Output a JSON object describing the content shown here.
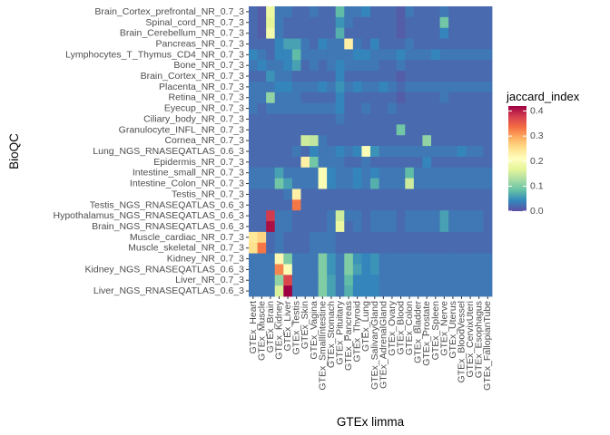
{
  "chart_data": {
    "type": "heatmap",
    "title": "",
    "xlabel": "GTEx limma",
    "ylabel": "BioQC",
    "colorbar": {
      "title": "jaccard_index",
      "range": [
        0,
        0.42
      ],
      "ticks": [
        0.0,
        0.1,
        0.2,
        0.3,
        0.4
      ],
      "tick_labels": [
        "0.0",
        "0.1",
        "0.2",
        "0.3",
        "0.4"
      ],
      "colormap": "Spectral (reversed)",
      "stops": [
        "#5E4FA2",
        "#3288BD",
        "#66C2A5",
        "#ABDDA4",
        "#E6F598",
        "#FFFFBF",
        "#FEE08B",
        "#FDAE61",
        "#F46D43",
        "#D53E4F",
        "#9E0142"
      ]
    },
    "grid": false,
    "legend_position": "right",
    "x_categories": [
      "GTEx_Heart",
      "GTEx_Muscle",
      "GTEx_Brain",
      "GTEx_Kidney",
      "GTEx_Liver",
      "GTEx_Testis",
      "GTEx_Skin",
      "GTEx_Vagina",
      "GTEx_SmallIntestine",
      "GTEx_Stomach",
      "GTEx_Pituitary",
      "GTEx_Pancreas",
      "GTEx_Thyroid",
      "GTEx_Lung",
      "GTEx_SalivaryGland",
      "GTEx_AdrenalGland",
      "GTEx_Ovary",
      "GTEx_Blood",
      "GTEx_Colon",
      "GTEx_Bladder",
      "GTEx_Prostate",
      "GTEx_Spleen",
      "GTEx_Nerve",
      "GTEx_Uterus",
      "GTEx_BloodVessel",
      "GTEx_CervixUteri",
      "GTEx_Esophagus",
      "GTEx_FallopianTube"
    ],
    "y_categories": [
      "Brain_Cortex_prefrontal_NR_0.7_3",
      "Spinal_cord_NR_0.7_3",
      "Brain_Cerebellum_NR_0.7_3",
      "Pancreas_NR_0.7_3",
      "Lymphocytes_T_Thymus_CD4_NR_0.7_3",
      "Bone_NR_0.7_3",
      "Brain_Cortex_NR_0.7_3",
      "Placenta_NR_0.7_3",
      "Retina_NR_0.7_3",
      "Eyecup_NR_0.7_3",
      "Ciliary_body_NR_0.7_3",
      "Granulocyte_INFL_NR_0.7_3",
      "Cornea_NR_0.7_3",
      "Lung_NGS_RNASEQATLAS_0.6_3",
      "Epidermis_NR_0.7_3",
      "Intestine_small_NR_0.7_3",
      "Intestine_Colon_NR_0.7_3",
      "Testis_NR_0.7_3",
      "Testis_NGS_RNASEQATLAS_0.6_3",
      "Hypothalamus_NGS_RNASEQATLAS_0.6_3",
      "Brain_NGS_RNASEQATLAS_0.6_3",
      "Muscle_cardiac_NR_0.7_3",
      "Muscle_skeletal_NR_0.7_3",
      "Kidney_NR_0.7_3",
      "Kidney_NGS_RNASEQATLAS_0.6_3",
      "Liver_NR_0.7_3",
      "Liver_NGS_RNASEQATLAS_0.6_3"
    ],
    "values": [
      [
        0.02,
        0.01,
        0.18,
        0.03,
        0.03,
        0.02,
        0.02,
        0.03,
        0.02,
        0.02,
        0.08,
        0.03,
        0.03,
        0.04,
        0.02,
        0.02,
        0.02,
        0.01,
        0.03,
        0.02,
        0.02,
        0.02,
        0.03,
        0.02,
        0.02,
        0.02,
        0.02,
        0.02
      ],
      [
        0.02,
        0.01,
        0.17,
        0.03,
        0.02,
        0.02,
        0.02,
        0.02,
        0.02,
        0.02,
        0.05,
        0.03,
        0.02,
        0.02,
        0.02,
        0.02,
        0.02,
        0.01,
        0.02,
        0.02,
        0.02,
        0.02,
        0.09,
        0.02,
        0.02,
        0.02,
        0.02,
        0.02
      ],
      [
        0.02,
        0.01,
        0.19,
        0.03,
        0.02,
        0.02,
        0.02,
        0.02,
        0.02,
        0.02,
        0.07,
        0.02,
        0.02,
        0.02,
        0.02,
        0.02,
        0.02,
        0.01,
        0.02,
        0.02,
        0.02,
        0.02,
        0.04,
        0.02,
        0.02,
        0.02,
        0.02,
        0.02
      ],
      [
        0.02,
        0.02,
        0.02,
        0.04,
        0.06,
        0.06,
        0.03,
        0.02,
        0.04,
        0.03,
        0.03,
        0.23,
        0.03,
        0.02,
        0.04,
        0.02,
        0.02,
        0.02,
        0.03,
        0.02,
        0.02,
        0.02,
        0.02,
        0.02,
        0.02,
        0.02,
        0.02,
        0.02
      ],
      [
        0.04,
        0.03,
        0.02,
        0.04,
        0.04,
        0.08,
        0.03,
        0.03,
        0.03,
        0.03,
        0.03,
        0.03,
        0.04,
        0.04,
        0.03,
        0.03,
        0.03,
        0.04,
        0.03,
        0.03,
        0.03,
        0.04,
        0.03,
        0.03,
        0.03,
        0.03,
        0.03,
        0.03
      ],
      [
        0.03,
        0.04,
        0.03,
        0.03,
        0.04,
        0.06,
        0.02,
        0.03,
        0.02,
        0.03,
        0.04,
        0.03,
        0.03,
        0.03,
        0.03,
        0.02,
        0.02,
        0.03,
        0.02,
        0.02,
        0.02,
        0.02,
        0.02,
        0.02,
        0.02,
        0.02,
        0.02,
        0.02
      ],
      [
        0.02,
        0.02,
        0.05,
        0.03,
        0.03,
        0.02,
        0.02,
        0.02,
        0.02,
        0.02,
        0.04,
        0.02,
        0.02,
        0.02,
        0.02,
        0.02,
        0.02,
        0.01,
        0.02,
        0.02,
        0.02,
        0.02,
        0.02,
        0.02,
        0.02,
        0.02,
        0.02,
        0.02
      ],
      [
        0.03,
        0.03,
        0.03,
        0.04,
        0.04,
        0.03,
        0.03,
        0.03,
        0.04,
        0.03,
        0.05,
        0.03,
        0.04,
        0.03,
        0.03,
        0.04,
        0.03,
        0.02,
        0.03,
        0.03,
        0.03,
        0.03,
        0.03,
        0.03,
        0.03,
        0.03,
        0.03,
        0.03
      ],
      [
        0.03,
        0.03,
        0.11,
        0.03,
        0.03,
        0.03,
        0.02,
        0.02,
        0.02,
        0.02,
        0.04,
        0.02,
        0.02,
        0.02,
        0.02,
        0.02,
        0.02,
        0.01,
        0.02,
        0.02,
        0.02,
        0.02,
        0.03,
        0.02,
        0.02,
        0.02,
        0.02,
        0.02
      ],
      [
        0.03,
        0.02,
        0.03,
        0.03,
        0.03,
        0.03,
        0.03,
        0.03,
        0.03,
        0.03,
        0.04,
        0.02,
        0.02,
        0.03,
        0.02,
        0.02,
        0.03,
        0.02,
        0.02,
        0.02,
        0.02,
        0.02,
        0.02,
        0.02,
        0.02,
        0.02,
        0.02,
        0.02
      ],
      [
        0.02,
        0.02,
        0.02,
        0.02,
        0.02,
        0.02,
        0.02,
        0.02,
        0.02,
        0.02,
        0.03,
        0.02,
        0.02,
        0.02,
        0.02,
        0.02,
        0.02,
        0.02,
        0.02,
        0.02,
        0.02,
        0.02,
        0.02,
        0.02,
        0.02,
        0.02,
        0.02,
        0.02
      ],
      [
        0.02,
        0.02,
        0.02,
        0.02,
        0.02,
        0.02,
        0.02,
        0.02,
        0.02,
        0.02,
        0.02,
        0.02,
        0.02,
        0.02,
        0.02,
        0.02,
        0.02,
        0.09,
        0.02,
        0.02,
        0.02,
        0.02,
        0.02,
        0.02,
        0.02,
        0.02,
        0.02,
        0.02
      ],
      [
        0.02,
        0.02,
        0.02,
        0.02,
        0.02,
        0.02,
        0.15,
        0.14,
        0.03,
        0.02,
        0.02,
        0.02,
        0.02,
        0.02,
        0.02,
        0.02,
        0.02,
        0.02,
        0.02,
        0.02,
        0.11,
        0.02,
        0.02,
        0.02,
        0.02,
        0.02,
        0.02,
        0.02
      ],
      [
        0.02,
        0.02,
        0.02,
        0.02,
        0.02,
        0.03,
        0.02,
        0.04,
        0.03,
        0.03,
        0.04,
        0.03,
        0.04,
        0.2,
        0.05,
        0.03,
        0.03,
        0.03,
        0.03,
        0.03,
        0.03,
        0.03,
        0.03,
        0.03,
        0.04,
        0.03,
        0.03,
        0.02
      ],
      [
        0.02,
        0.02,
        0.02,
        0.02,
        0.02,
        0.02,
        0.23,
        0.09,
        0.03,
        0.03,
        0.03,
        0.02,
        0.02,
        0.03,
        0.02,
        0.02,
        0.02,
        0.02,
        0.02,
        0.02,
        0.04,
        0.02,
        0.02,
        0.02,
        0.02,
        0.02,
        0.02,
        0.02
      ],
      [
        0.03,
        0.03,
        0.03,
        0.06,
        0.03,
        0.03,
        0.03,
        0.03,
        0.2,
        0.04,
        0.03,
        0.03,
        0.04,
        0.03,
        0.04,
        0.03,
        0.03,
        0.03,
        0.08,
        0.03,
        0.03,
        0.03,
        0.03,
        0.03,
        0.03,
        0.03,
        0.03,
        0.03
      ],
      [
        0.03,
        0.03,
        0.03,
        0.09,
        0.06,
        0.03,
        0.03,
        0.03,
        0.2,
        0.04,
        0.03,
        0.03,
        0.04,
        0.03,
        0.07,
        0.03,
        0.03,
        0.03,
        0.15,
        0.03,
        0.03,
        0.03,
        0.03,
        0.03,
        0.03,
        0.03,
        0.03,
        0.03
      ],
      [
        0.02,
        0.02,
        0.02,
        0.02,
        0.03,
        0.23,
        0.02,
        0.02,
        0.02,
        0.02,
        0.02,
        0.02,
        0.02,
        0.02,
        0.02,
        0.02,
        0.02,
        0.02,
        0.02,
        0.02,
        0.02,
        0.02,
        0.02,
        0.02,
        0.02,
        0.02,
        0.02,
        0.02
      ],
      [
        0.02,
        0.02,
        0.02,
        0.02,
        0.02,
        0.33,
        0.02,
        0.02,
        0.02,
        0.02,
        0.02,
        0.02,
        0.02,
        0.02,
        0.02,
        0.02,
        0.02,
        0.02,
        0.02,
        0.02,
        0.02,
        0.02,
        0.02,
        0.02,
        0.02,
        0.02,
        0.02,
        0.02
      ],
      [
        0.02,
        0.02,
        0.38,
        0.03,
        0.03,
        0.02,
        0.02,
        0.02,
        0.02,
        0.03,
        0.15,
        0.03,
        0.03,
        0.02,
        0.03,
        0.03,
        0.03,
        0.02,
        0.03,
        0.03,
        0.03,
        0.03,
        0.06,
        0.03,
        0.03,
        0.03,
        0.03,
        0.02
      ],
      [
        0.02,
        0.02,
        0.41,
        0.03,
        0.03,
        0.02,
        0.02,
        0.02,
        0.02,
        0.03,
        0.18,
        0.02,
        0.03,
        0.02,
        0.03,
        0.03,
        0.03,
        0.02,
        0.03,
        0.03,
        0.03,
        0.03,
        0.06,
        0.03,
        0.03,
        0.03,
        0.03,
        0.02
      ],
      [
        0.24,
        0.26,
        0.02,
        0.03,
        0.02,
        0.02,
        0.02,
        0.03,
        0.03,
        0.03,
        0.02,
        0.02,
        0.02,
        0.02,
        0.02,
        0.02,
        0.02,
        0.02,
        0.02,
        0.02,
        0.02,
        0.02,
        0.02,
        0.02,
        0.02,
        0.02,
        0.02,
        0.02
      ],
      [
        0.25,
        0.33,
        0.02,
        0.03,
        0.02,
        0.02,
        0.02,
        0.03,
        0.03,
        0.03,
        0.02,
        0.02,
        0.02,
        0.02,
        0.02,
        0.02,
        0.02,
        0.02,
        0.02,
        0.02,
        0.02,
        0.02,
        0.02,
        0.02,
        0.02,
        0.02,
        0.02,
        0.02
      ],
      [
        0.03,
        0.03,
        0.03,
        0.22,
        0.1,
        0.03,
        0.03,
        0.03,
        0.1,
        0.05,
        0.03,
        0.1,
        0.05,
        0.04,
        0.05,
        0.03,
        0.03,
        0.03,
        0.03,
        0.03,
        0.03,
        0.03,
        0.03,
        0.03,
        0.03,
        0.03,
        0.03,
        0.03
      ],
      [
        0.03,
        0.03,
        0.03,
        0.32,
        0.2,
        0.03,
        0.03,
        0.03,
        0.1,
        0.05,
        0.03,
        0.1,
        0.06,
        0.04,
        0.05,
        0.03,
        0.03,
        0.03,
        0.03,
        0.03,
        0.03,
        0.03,
        0.03,
        0.03,
        0.03,
        0.03,
        0.03,
        0.03
      ],
      [
        0.03,
        0.03,
        0.03,
        0.11,
        0.37,
        0.03,
        0.03,
        0.03,
        0.1,
        0.06,
        0.03,
        0.08,
        0.04,
        0.04,
        0.04,
        0.03,
        0.03,
        0.03,
        0.03,
        0.03,
        0.03,
        0.03,
        0.03,
        0.03,
        0.03,
        0.03,
        0.03,
        0.03
      ],
      [
        0.03,
        0.03,
        0.03,
        0.16,
        0.42,
        0.03,
        0.03,
        0.03,
        0.1,
        0.06,
        0.03,
        0.07,
        0.04,
        0.04,
        0.04,
        0.03,
        0.03,
        0.03,
        0.03,
        0.03,
        0.03,
        0.03,
        0.03,
        0.03,
        0.03,
        0.03,
        0.03,
        0.03
      ]
    ]
  }
}
